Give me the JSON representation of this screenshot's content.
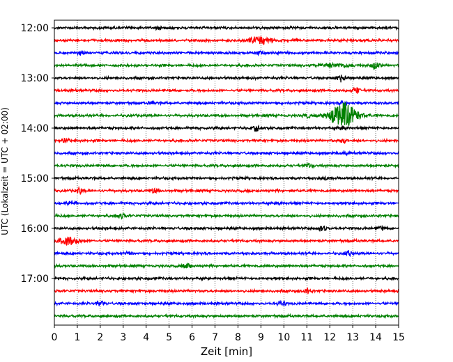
{
  "chart_data": {
    "type": "line",
    "title": "",
    "xlabel": "Zeit  [min]",
    "ylabel": "UTC (Lokalzeit = UTC + 02:00)",
    "xlim": [
      0,
      15
    ],
    "x_ticks": [
      "0",
      "1",
      "2",
      "3",
      "4",
      "5",
      "6",
      "7",
      "8",
      "9",
      "10",
      "11",
      "12",
      "13",
      "14",
      "15"
    ],
    "y_tick_labels": [
      "12:00",
      "13:00",
      "14:00",
      "15:00",
      "16:00",
      "17:00"
    ],
    "grid": "vertical dotted lines at each minute",
    "legend": "none",
    "trace_interval_minutes": 15,
    "start_time": "12:00",
    "color_cycle": [
      "#000000",
      "#ff0000",
      "#0000ff",
      "#008000"
    ],
    "traces": [
      {
        "time": "12:00",
        "color": "#000000",
        "events": [
          {
            "t": 4.5,
            "amp": 0.6
          }
        ]
      },
      {
        "time": "12:15",
        "color": "#ff0000",
        "events": [
          {
            "t": 9.0,
            "amp": 1.3,
            "dur": 1.2
          }
        ]
      },
      {
        "time": "12:30",
        "color": "#0000ff",
        "events": [
          {
            "t": 1.2,
            "amp": 0.6
          },
          {
            "t": 9.0,
            "amp": 0.6
          }
        ]
      },
      {
        "time": "12:45",
        "color": "#008000",
        "events": [
          {
            "t": 12.2,
            "amp": 0.6,
            "dur": 1.5
          },
          {
            "t": 14.0,
            "amp": 1.3
          }
        ]
      },
      {
        "time": "13:00",
        "color": "#000000",
        "events": [
          {
            "t": 12.5,
            "amp": 1.5
          }
        ]
      },
      {
        "time": "13:15",
        "color": "#ff0000",
        "events": [
          {
            "t": 13.2,
            "amp": 1.0
          }
        ]
      },
      {
        "time": "13:30",
        "color": "#0000ff",
        "events": [
          {
            "t": 4.2,
            "amp": 0.5
          },
          {
            "t": 12.6,
            "amp": 0.6
          }
        ]
      },
      {
        "time": "13:45",
        "color": "#008000",
        "events": [
          {
            "t": 12.6,
            "amp": 4.5,
            "dur": 1.2
          },
          {
            "t": 11.0,
            "amp": 0.6
          }
        ]
      },
      {
        "time": "14:00",
        "color": "#000000",
        "events": [
          {
            "t": 8.8,
            "amp": 1.0
          },
          {
            "t": 12.6,
            "amp": 0.8
          }
        ]
      },
      {
        "time": "14:15",
        "color": "#ff0000",
        "events": [
          {
            "t": 0.5,
            "amp": 0.6
          },
          {
            "t": 12.6,
            "amp": 0.8
          }
        ]
      },
      {
        "time": "14:30",
        "color": "#0000ff",
        "events": [
          {
            "t": 12.6,
            "amp": 0.6
          }
        ]
      },
      {
        "time": "14:45",
        "color": "#008000",
        "events": [
          {
            "t": 11.1,
            "amp": 0.6
          }
        ]
      },
      {
        "time": "15:00",
        "color": "#000000",
        "events": [
          {
            "t": 11.8,
            "amp": 0.4
          }
        ]
      },
      {
        "time": "15:15",
        "color": "#ff0000",
        "events": [
          {
            "t": 1.1,
            "amp": 0.9
          },
          {
            "t": 4.4,
            "amp": 0.9
          }
        ]
      },
      {
        "time": "15:30",
        "color": "#0000ff",
        "events": [
          {
            "t": 0.8,
            "amp": 0.7
          },
          {
            "t": 9.8,
            "amp": 0.5
          }
        ]
      },
      {
        "time": "15:45",
        "color": "#008000",
        "events": [
          {
            "t": 2.9,
            "amp": 0.7
          }
        ]
      },
      {
        "time": "16:00",
        "color": "#000000",
        "events": [
          {
            "t": 11.7,
            "amp": 1.4
          },
          {
            "t": 14.2,
            "amp": 0.8
          }
        ]
      },
      {
        "time": "16:15",
        "color": "#ff0000",
        "events": [
          {
            "t": 0.6,
            "amp": 1.3,
            "dur": 1.0
          }
        ]
      },
      {
        "time": "16:30",
        "color": "#0000ff",
        "events": [
          {
            "t": 3.2,
            "amp": 0.6
          },
          {
            "t": 12.8,
            "amp": 0.8
          }
        ]
      },
      {
        "time": "16:45",
        "color": "#008000",
        "events": [
          {
            "t": 5.8,
            "amp": 0.8
          }
        ]
      },
      {
        "time": "17:00",
        "color": "#000000",
        "events": []
      },
      {
        "time": "17:15",
        "color": "#ff0000",
        "events": [
          {
            "t": 11.0,
            "amp": 0.7
          }
        ]
      },
      {
        "time": "17:30",
        "color": "#0000ff",
        "events": [
          {
            "t": 2.0,
            "amp": 0.8
          },
          {
            "t": 9.9,
            "amp": 0.8
          }
        ]
      },
      {
        "time": "17:45",
        "color": "#008000",
        "events": []
      }
    ]
  }
}
